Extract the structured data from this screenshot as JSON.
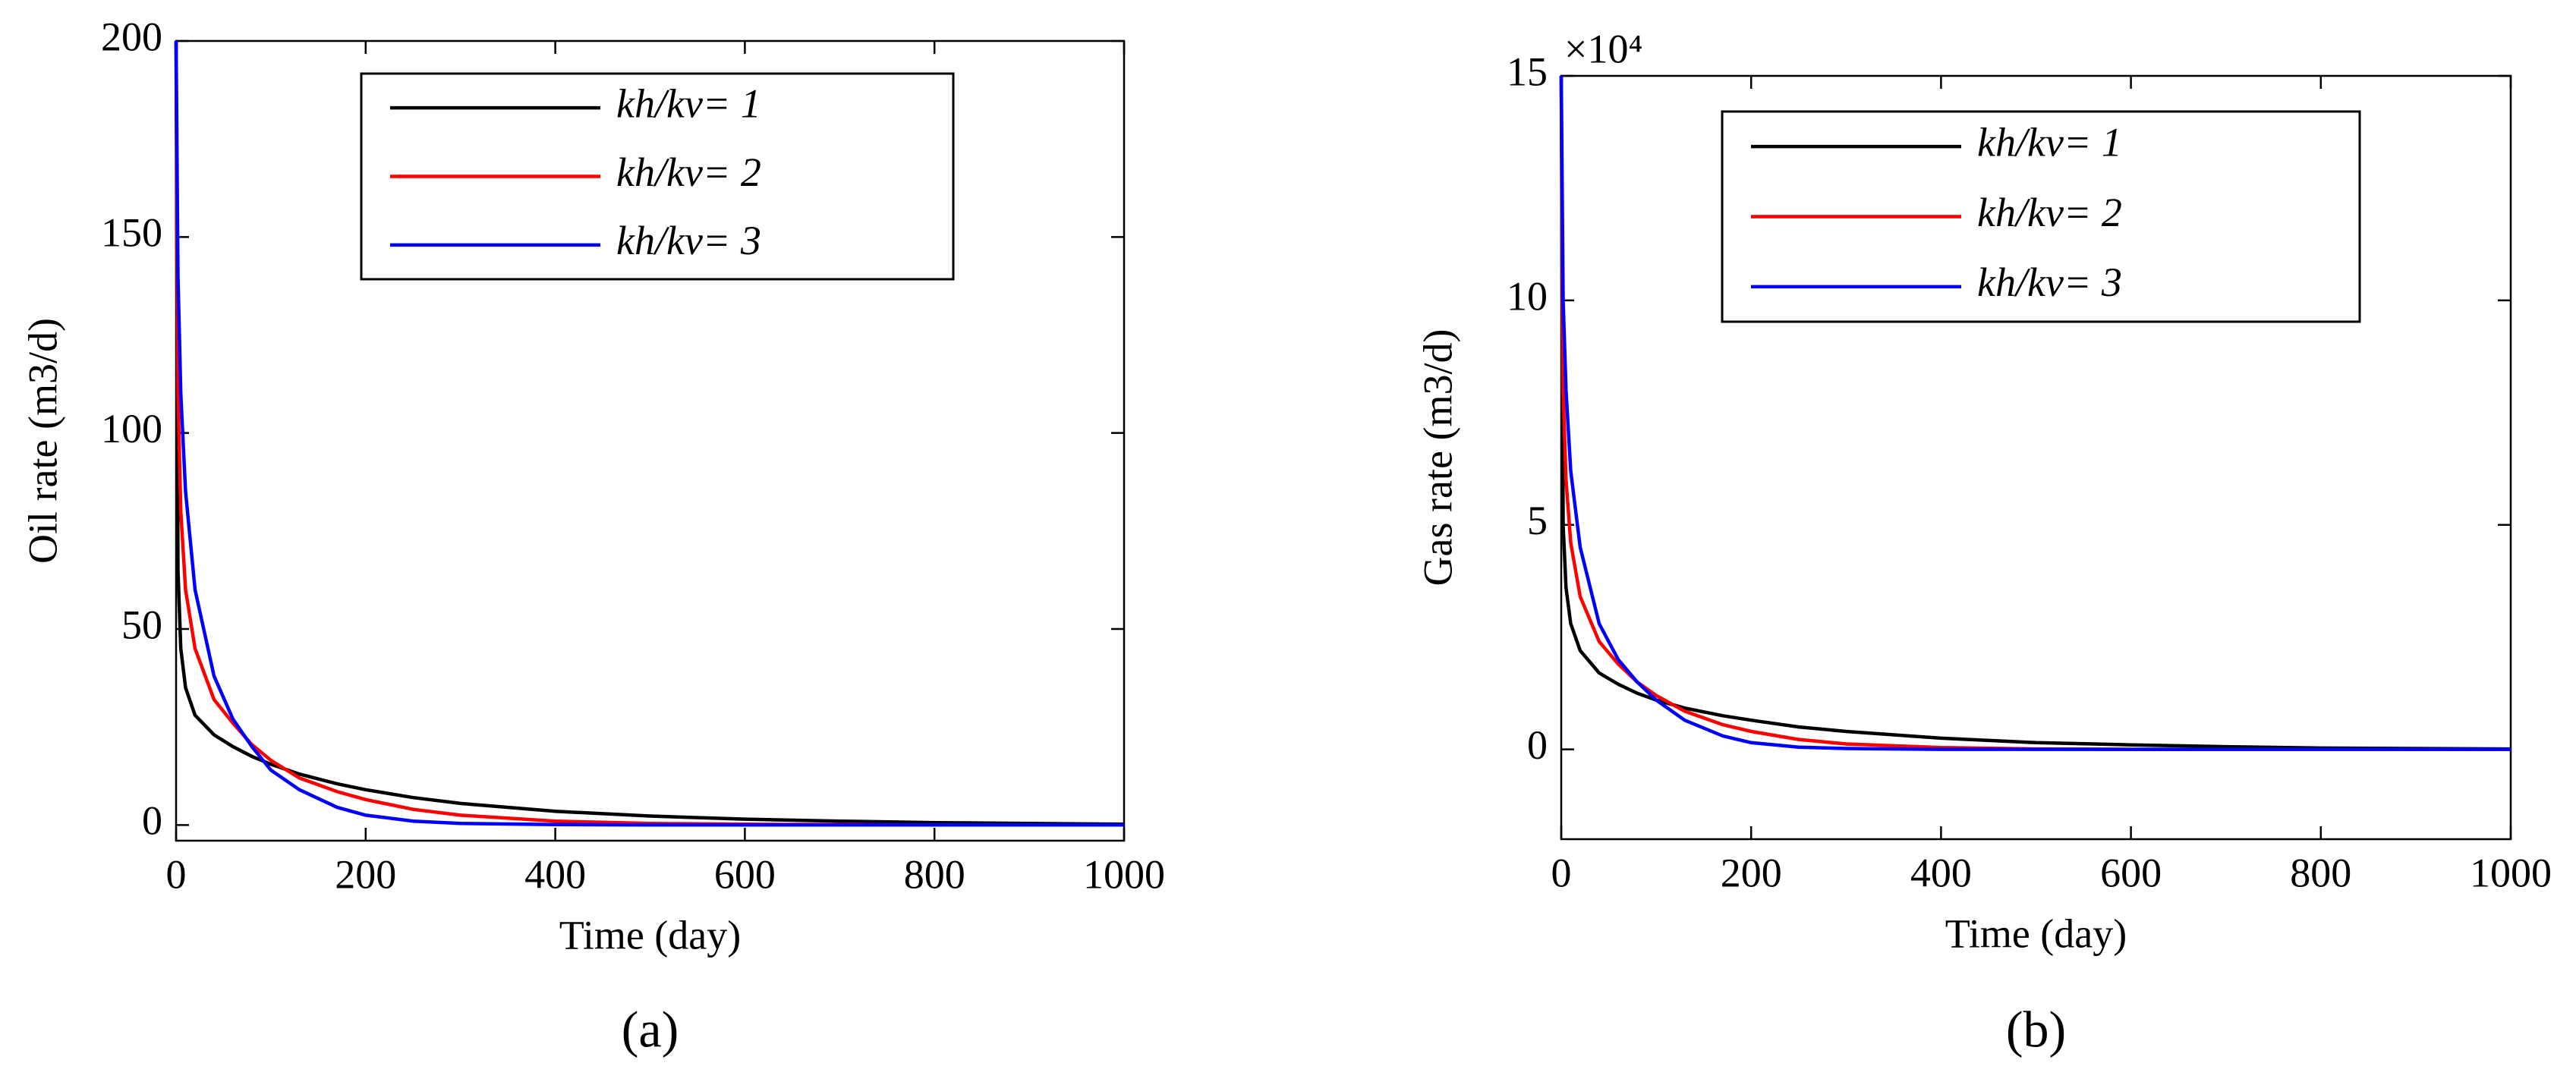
{
  "chart_data": [
    {
      "type": "line",
      "caption": "(a)",
      "xlabel": "Time (day)",
      "ylabel": "Oil rate (m3/d)",
      "x": [
        0,
        2,
        5,
        10,
        20,
        40,
        60,
        80,
        100,
        130,
        170,
        200,
        250,
        300,
        400,
        500,
        600,
        700,
        800,
        1000
      ],
      "series": [
        {
          "name": "kh/kv= 1",
          "color": "#000000",
          "values": [
            200,
            65,
            45,
            35,
            28,
            23,
            20,
            17.5,
            15.5,
            13,
            10.5,
            9,
            7,
            5.5,
            3.5,
            2.3,
            1.5,
            1,
            0.6,
            0.2
          ]
        },
        {
          "name": "kh/kv= 2",
          "color": "#ff0000",
          "values": [
            200,
            110,
            80,
            60,
            45,
            32,
            26,
            20.5,
            16.5,
            12,
            8.5,
            6.5,
            4,
            2.5,
            1,
            0.4,
            0.2,
            0.1,
            0,
            0
          ]
        },
        {
          "name": "kh/kv= 3",
          "color": "#0000ff",
          "values": [
            200,
            140,
            110,
            85,
            60,
            38,
            27,
            20,
            14,
            9,
            4.5,
            2.5,
            1,
            0.4,
            0.1,
            0,
            0,
            0,
            0,
            0
          ]
        }
      ],
      "xlim": [
        0,
        1000
      ],
      "xticks": [
        0,
        200,
        400,
        600,
        800,
        1000
      ],
      "ylim": [
        -4,
        200
      ],
      "yticks": [
        0,
        50,
        100,
        150,
        200
      ],
      "legend": "upper center"
    },
    {
      "type": "line",
      "caption": "(b)",
      "xlabel": "Time (day)",
      "ylabel": "Gas rate (m3/d)",
      "y_multiplier": "×10⁴",
      "x": [
        0,
        2,
        5,
        10,
        20,
        40,
        60,
        80,
        100,
        130,
        170,
        200,
        250,
        300,
        400,
        500,
        600,
        700,
        800,
        1000
      ],
      "series": [
        {
          "name": "kh/kv= 1",
          "color": "#000000",
          "values": [
            15,
            5,
            3.6,
            2.8,
            2.2,
            1.7,
            1.45,
            1.25,
            1.1,
            0.92,
            0.75,
            0.65,
            0.5,
            0.4,
            0.25,
            0.15,
            0.1,
            0.06,
            0.03,
            0.01
          ]
        },
        {
          "name": "kh/kv= 2",
          "color": "#ff0000",
          "values": [
            15,
            8,
            6,
            4.6,
            3.4,
            2.4,
            1.9,
            1.5,
            1.2,
            0.85,
            0.55,
            0.4,
            0.22,
            0.12,
            0.04,
            0.01,
            0,
            0,
            0,
            0
          ]
        },
        {
          "name": "kh/kv= 3",
          "color": "#0000ff",
          "values": [
            15,
            10,
            8,
            6.2,
            4.5,
            2.8,
            2,
            1.5,
            1.1,
            0.65,
            0.3,
            0.15,
            0.05,
            0.02,
            0,
            0,
            0,
            0,
            0,
            0
          ]
        }
      ],
      "xlim": [
        0,
        1000
      ],
      "xticks": [
        0,
        200,
        400,
        600,
        800,
        1000
      ],
      "ylim": [
        -2,
        15
      ],
      "yticks": [
        0,
        5,
        10,
        15
      ],
      "legend": "upper center"
    }
  ]
}
